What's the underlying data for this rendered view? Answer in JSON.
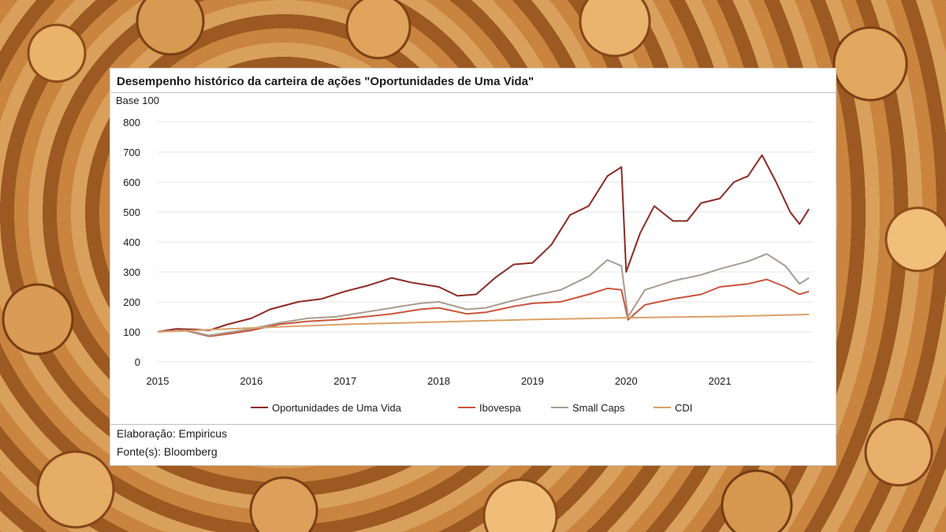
{
  "background": {
    "description_icon": "pile-of-coins-icon"
  },
  "chart_data": {
    "type": "line",
    "title": "Desempenho histórico da carteira de ações \"Oportunidades de Uma Vida\"",
    "ylabel": "Base 100",
    "xlabel": "",
    "ylim": [
      0,
      800
    ],
    "xlim": [
      2015,
      2022
    ],
    "yticks": [
      0,
      100,
      200,
      300,
      400,
      500,
      600,
      700,
      800
    ],
    "xticks": [
      "2015",
      "2016",
      "2017",
      "2018",
      "2019",
      "2020",
      "2021"
    ],
    "grid": true,
    "legend_position": "bottom",
    "series": [
      {
        "name": "Oportunidades de Uma Vida",
        "color": "#8b2a25",
        "x": [
          2015.0,
          2015.2,
          2015.4,
          2015.55,
          2015.75,
          2016.0,
          2016.2,
          2016.5,
          2016.75,
          2017.0,
          2017.25,
          2017.5,
          2017.7,
          2018.0,
          2018.2,
          2018.4,
          2018.6,
          2018.8,
          2019.0,
          2019.2,
          2019.4,
          2019.6,
          2019.8,
          2019.95,
          2020.0,
          2020.15,
          2020.3,
          2020.5,
          2020.65,
          2020.8,
          2021.0,
          2021.15,
          2021.3,
          2021.45,
          2021.6,
          2021.75,
          2021.85,
          2021.95
        ],
        "values": [
          100,
          110,
          108,
          105,
          125,
          145,
          175,
          200,
          210,
          235,
          255,
          280,
          265,
          250,
          220,
          225,
          280,
          325,
          330,
          390,
          490,
          520,
          620,
          650,
          300,
          430,
          520,
          470,
          470,
          530,
          545,
          600,
          620,
          690,
          600,
          500,
          460,
          510
        ]
      },
      {
        "name": "Ibovespa",
        "color": "#c8553a",
        "x": [
          2015.0,
          2015.3,
          2015.55,
          2015.8,
          2016.0,
          2016.3,
          2016.6,
          2016.9,
          2017.2,
          2017.5,
          2017.8,
          2018.0,
          2018.3,
          2018.5,
          2018.8,
          2019.0,
          2019.3,
          2019.6,
          2019.8,
          2019.95,
          2020.02,
          2020.2,
          2020.5,
          2020.8,
          2021.0,
          2021.3,
          2021.5,
          2021.7,
          2021.85,
          2021.95
        ],
        "values": [
          100,
          104,
          85,
          95,
          105,
          125,
          135,
          140,
          150,
          160,
          175,
          180,
          160,
          165,
          185,
          195,
          200,
          225,
          245,
          240,
          140,
          190,
          210,
          225,
          250,
          260,
          275,
          250,
          225,
          235
        ]
      },
      {
        "name": "Small Caps",
        "color": "#a89c8e",
        "x": [
          2015.0,
          2015.3,
          2015.55,
          2015.8,
          2016.0,
          2016.3,
          2016.6,
          2016.9,
          2017.2,
          2017.5,
          2017.8,
          2018.0,
          2018.3,
          2018.5,
          2018.8,
          2019.0,
          2019.3,
          2019.6,
          2019.8,
          2019.95,
          2020.02,
          2020.2,
          2020.5,
          2020.8,
          2021.0,
          2021.3,
          2021.5,
          2021.7,
          2021.85,
          2021.95
        ],
        "values": [
          100,
          105,
          88,
          100,
          110,
          130,
          145,
          150,
          165,
          180,
          195,
          200,
          175,
          180,
          205,
          220,
          240,
          285,
          340,
          320,
          150,
          240,
          270,
          290,
          310,
          335,
          360,
          320,
          260,
          280
        ]
      },
      {
        "name": "CDI",
        "color": "#d9a066",
        "x": [
          2015.0,
          2016.0,
          2017.0,
          2018.0,
          2019.0,
          2020.0,
          2021.0,
          2021.95
        ],
        "values": [
          100,
          113,
          125,
          133,
          141,
          147,
          151,
          158
        ]
      }
    ]
  },
  "footer": {
    "elaboracao": "Elaboração: Empiricus",
    "fontes": "Fonte(s): Bloomberg"
  }
}
